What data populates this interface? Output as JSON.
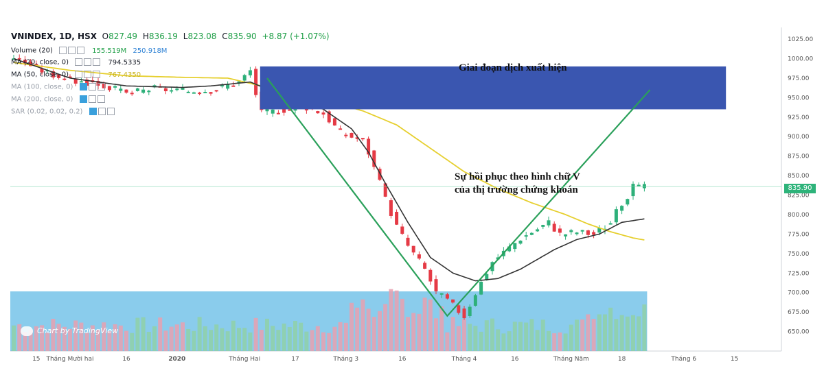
{
  "header": {
    "symbol": "VNINDEX, 1D, HSX",
    "open_label": "O",
    "open": "827.49",
    "high_label": "H",
    "high": "836.19",
    "low_label": "L",
    "low": "823.08",
    "close_label": "C",
    "close": "835.90",
    "change": "+8.87 (+1.07%)"
  },
  "indicators": [
    {
      "name": "Volume (20)",
      "v1": "155.519M",
      "v2": "250.918M"
    },
    {
      "name": "MA (20, close, 0)",
      "v1": "794.5335"
    },
    {
      "name": "MA (50, close, 0)",
      "v1": "767.4350"
    },
    {
      "name": "MA (100, close, 0)"
    },
    {
      "name": "MA (200, close, 0)"
    },
    {
      "name": "SAR (0.02, 0.02, 0.2)"
    }
  ],
  "annotations": {
    "box_label": "Giai đoạn dịch xuất hiện",
    "recovery_line1": "Sự hồi phục theo hình chữ V",
    "recovery_line2": "của thị trường chứng khoán"
  },
  "watermark": "Chart by TradingView",
  "price_tag": "835.90",
  "colors": {
    "up": "#2eb07a",
    "down": "#e53a45",
    "ma20": "#333333",
    "ma50": "#e6cf2e",
    "vline": "#2aa05a",
    "box": "#3a56b0",
    "volume": "#2aa3dc"
  },
  "chart_data": {
    "type": "candlestick",
    "title": "VNINDEX, 1D, HSX",
    "ylim": [
      625,
      1040
    ],
    "y_ticks": [
      "650.00",
      "675.00",
      "700.00",
      "725.00",
      "750.00",
      "775.00",
      "800.00",
      "825.00",
      "850.00",
      "875.00",
      "900.00",
      "925.00",
      "950.00",
      "975.00",
      "1000.00",
      "1025.00"
    ],
    "x_ticks": [
      {
        "label": "15",
        "i": 4
      },
      {
        "label": "Tháng Mười hai",
        "i": 10
      },
      {
        "label": "16",
        "i": 20
      },
      {
        "label": "2020",
        "i": 29
      },
      {
        "label": "Tháng Hai",
        "i": 41
      },
      {
        "label": "17",
        "i": 50
      },
      {
        "label": "Tháng 3",
        "i": 59
      },
      {
        "label": "16",
        "i": 69
      },
      {
        "label": "Tháng 4",
        "i": 80
      },
      {
        "label": "16",
        "i": 89
      },
      {
        "label": "Tháng Năm",
        "i": 99
      },
      {
        "label": "18",
        "i": 108
      },
      {
        "label": "Tháng 6",
        "i": 119
      },
      {
        "label": "15",
        "i": 128
      }
    ],
    "anchors": [
      [
        0,
        1002
      ],
      [
        5,
        985
      ],
      [
        10,
        972
      ],
      [
        15,
        968
      ],
      [
        20,
        955
      ],
      [
        25,
        962
      ],
      [
        30,
        958
      ],
      [
        35,
        960
      ],
      [
        40,
        970
      ],
      [
        42,
        985
      ],
      [
        43,
        955
      ],
      [
        44,
        930
      ],
      [
        48,
        935
      ],
      [
        52,
        938
      ],
      [
        55,
        930
      ],
      [
        58,
        905
      ],
      [
        62,
        895
      ],
      [
        63,
        880
      ],
      [
        66,
        820
      ],
      [
        68,
        785
      ],
      [
        70,
        760
      ],
      [
        73,
        730
      ],
      [
        75,
        700
      ],
      [
        77,
        690
      ],
      [
        80,
        670
      ],
      [
        82,
        700
      ],
      [
        85,
        740
      ],
      [
        90,
        770
      ],
      [
        95,
        790
      ],
      [
        97,
        775
      ],
      [
        100,
        778
      ],
      [
        103,
        775
      ],
      [
        106,
        790
      ],
      [
        108,
        815
      ],
      [
        110,
        835
      ],
      [
        112,
        835
      ]
    ],
    "ma20": [
      [
        0,
        1000
      ],
      [
        10,
        975
      ],
      [
        20,
        965
      ],
      [
        30,
        963
      ],
      [
        35,
        965
      ],
      [
        42,
        970
      ],
      [
        46,
        958
      ],
      [
        50,
        948
      ],
      [
        55,
        935
      ],
      [
        60,
        910
      ],
      [
        63,
        880
      ],
      [
        66,
        840
      ],
      [
        70,
        790
      ],
      [
        74,
        745
      ],
      [
        78,
        725
      ],
      [
        82,
        715
      ],
      [
        86,
        718
      ],
      [
        90,
        730
      ],
      [
        96,
        755
      ],
      [
        100,
        768
      ],
      [
        104,
        775
      ],
      [
        108,
        790
      ],
      [
        112,
        794.5
      ]
    ],
    "ma50": [
      [
        0,
        995
      ],
      [
        10,
        985
      ],
      [
        20,
        978
      ],
      [
        30,
        976
      ],
      [
        38,
        975
      ],
      [
        44,
        965
      ],
      [
        50,
        955
      ],
      [
        56,
        945
      ],
      [
        62,
        933
      ],
      [
        68,
        915
      ],
      [
        74,
        885
      ],
      [
        80,
        855
      ],
      [
        86,
        833
      ],
      [
        92,
        815
      ],
      [
        98,
        800
      ],
      [
        102,
        788
      ],
      [
        106,
        778
      ],
      [
        110,
        770
      ],
      [
        112,
        767.4
      ]
    ],
    "vmarker": [
      [
        45,
        975
      ],
      [
        77,
        670
      ],
      [
        113,
        960
      ]
    ],
    "box": {
      "from_i": 44,
      "to_i": 126,
      "low": 935,
      "high": 990
    },
    "last_price": 835.9
  }
}
